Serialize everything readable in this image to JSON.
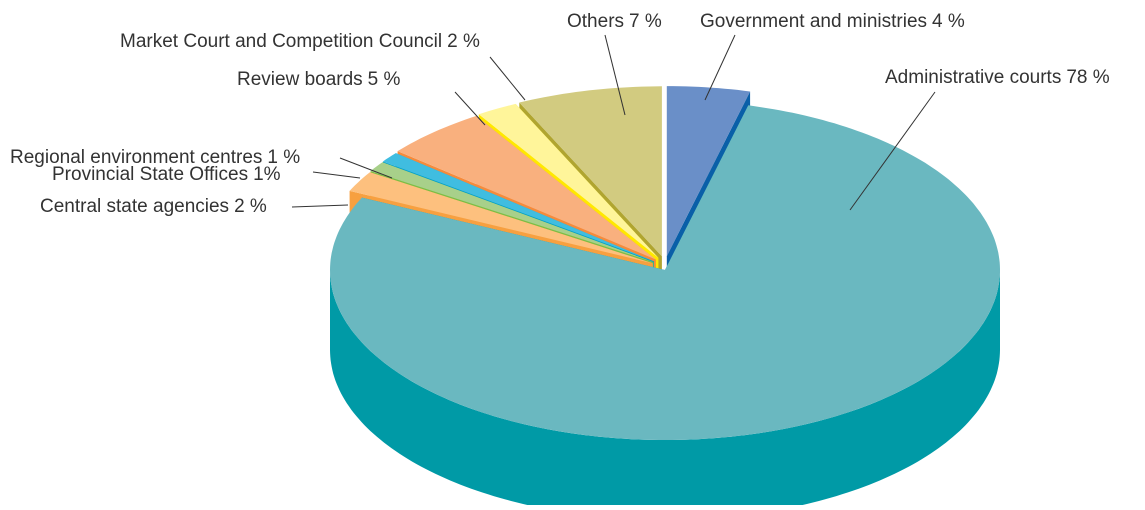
{
  "chart_data": {
    "type": "pie",
    "categories": [
      "Government and ministries",
      "Administrative courts",
      "Central state agencies",
      "Provincial State Offices",
      "Regional environment centres",
      "Review boards",
      "Market Court and Competition Council",
      "Others"
    ],
    "values": [
      4,
      78,
      2,
      1,
      1,
      5,
      2,
      7
    ],
    "value_labels": [
      "4 %",
      "78 %",
      "2 %",
      "1%",
      "1 %",
      "5 %",
      "2 %",
      "7 %"
    ],
    "colors": [
      "#6a8fc8",
      "#6ab8c0",
      "#fdc07e",
      "#a8d08a",
      "#40bde0",
      "#f9b07e",
      "#fff59a",
      "#d2cb80"
    ],
    "side_colors": [
      "#0a5fa8",
      "#009aa6",
      "#f7a040",
      "#7bbf45",
      "#00a0cc",
      "#f58b3c",
      "#ffe800",
      "#b0a530"
    ]
  }
}
